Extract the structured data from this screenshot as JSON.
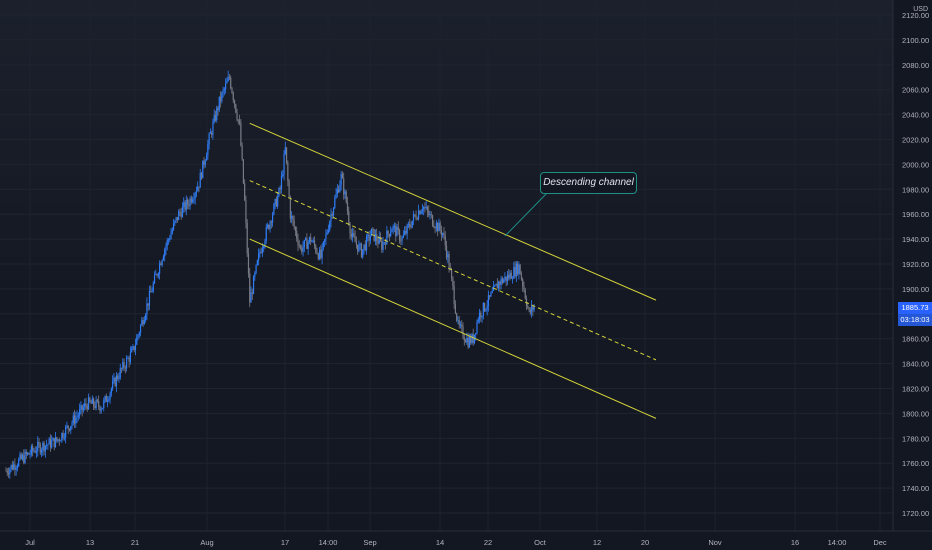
{
  "colors": {
    "background": "#131722",
    "candle_up": "#2f7cf6",
    "candle_down": "#787b86",
    "channel_line": "#d4d43a",
    "callout_border": "#1f8f86",
    "badge": "#2962ff"
  },
  "chart_data": {
    "type": "line",
    "series_style": "candlestick",
    "currency": "USD",
    "y_axis": {
      "ylim": [
        1710,
        2130
      ],
      "ticks": [
        "1720.00",
        "1740.00",
        "1760.00",
        "1780.00",
        "1800.00",
        "1820.00",
        "1840.00",
        "1860.00",
        "1880.00",
        "1900.00",
        "1920.00",
        "1940.00",
        "1960.00",
        "1980.00",
        "2000.00",
        "2020.00",
        "2040.00",
        "2060.00",
        "2080.00",
        "2100.00",
        "2120.00"
      ],
      "current_price": "1885.73",
      "countdown": "03:18:03"
    },
    "x_axis": {
      "ticks": [
        "Jul",
        "13",
        "21",
        "Aug",
        "17",
        "14:00",
        "Sep",
        "14",
        "22",
        "Oct",
        "12",
        "20",
        "Nov",
        "16",
        "14:00",
        "Dec"
      ]
    },
    "price_path": [
      [
        0,
        1754
      ],
      [
        6,
        1772
      ],
      [
        10,
        1778
      ],
      [
        12,
        1788
      ],
      [
        14,
        1798
      ],
      [
        16,
        1808
      ],
      [
        19,
        1806
      ],
      [
        22,
        1830
      ],
      [
        25,
        1850
      ],
      [
        28,
        1890
      ],
      [
        31,
        1930
      ],
      [
        34,
        1960
      ],
      [
        36,
        1970
      ],
      [
        38,
        1985
      ],
      [
        40,
        2020
      ],
      [
        42,
        2050
      ],
      [
        44,
        2070
      ],
      [
        45,
        2050
      ],
      [
        46,
        2030
      ],
      [
        47,
        1970
      ],
      [
        48,
        1890
      ],
      [
        50,
        1930
      ],
      [
        52,
        1955
      ],
      [
        54,
        1980
      ],
      [
        55,
        2012
      ],
      [
        56,
        1960
      ],
      [
        58,
        1932
      ],
      [
        60,
        1940
      ],
      [
        62,
        1925
      ],
      [
        64,
        1960
      ],
      [
        66,
        1990
      ],
      [
        67,
        1970
      ],
      [
        68,
        1942
      ],
      [
        70,
        1930
      ],
      [
        72,
        1945
      ],
      [
        74,
        1935
      ],
      [
        76,
        1950
      ],
      [
        78,
        1940
      ],
      [
        80,
        1955
      ],
      [
        82,
        1967
      ],
      [
        84,
        1955
      ],
      [
        86,
        1945
      ],
      [
        87,
        1925
      ],
      [
        88,
        1900
      ],
      [
        89,
        1870
      ],
      [
        91,
        1858
      ],
      [
        92,
        1860
      ],
      [
        93,
        1878
      ],
      [
        95,
        1890
      ],
      [
        97,
        1905
      ],
      [
        99,
        1910
      ],
      [
        101,
        1918
      ],
      [
        102,
        1900
      ],
      [
        103,
        1880
      ],
      [
        104,
        1886
      ]
    ],
    "x_day_range": [
      0,
      130
    ],
    "channel": {
      "upper": [
        [
          48,
          2033
        ],
        [
          128,
          1891
        ]
      ],
      "middle": [
        [
          48,
          1987
        ],
        [
          128,
          1843
        ]
      ],
      "lower": [
        [
          48,
          1940
        ],
        [
          128,
          1796
        ]
      ]
    },
    "annotations": [
      {
        "text": "Descending channel"
      }
    ]
  }
}
